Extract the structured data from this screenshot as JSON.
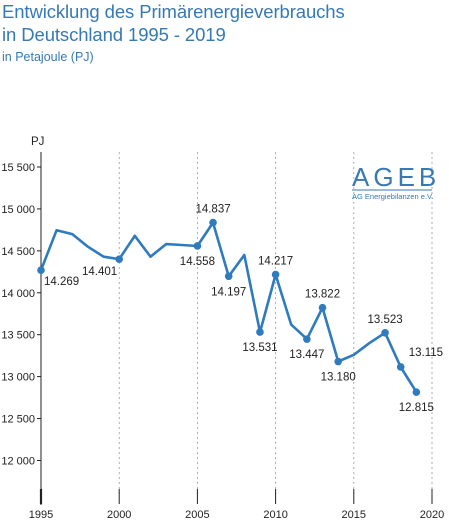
{
  "title_line1": "Entwicklung des Primärenergieverbrauchs",
  "title_line2": "in Deutschland 1995 - 2019",
  "subtitle": "in Petajoule (PJ)",
  "colors": {
    "accent": "#3679b4",
    "line": "#2e7bbf",
    "text": "#222222",
    "grid": "#999999"
  },
  "logo": {
    "text": "AGEB",
    "tagline": "AG Energiebilanzen e.V."
  },
  "chart_data": {
    "type": "line",
    "title": "Entwicklung des Primärenergieverbrauchs in Deutschland 1995 - 2019",
    "subtitle": "in Petajoule (PJ)",
    "xlabel": "",
    "ylabel": "PJ",
    "xlim": [
      1995,
      2020
    ],
    "ylim": [
      11600,
      15600
    ],
    "grid": "vertical dashed",
    "x_ticks": [
      1995,
      2000,
      2005,
      2010,
      2015,
      2020
    ],
    "x_tick_labels": [
      "1995",
      "2000",
      "2005",
      "2010",
      "2015",
      "2020"
    ],
    "y_ticks": [
      12000,
      12500,
      13000,
      13500,
      14000,
      14500,
      15000,
      15500
    ],
    "y_tick_labels": [
      "12 000",
      "12 500",
      "13 000",
      "13 500",
      "14 000",
      "14 500",
      "15 000",
      "15 500"
    ],
    "series": [
      {
        "x": [
          1995,
          1996,
          1997,
          1998,
          1999,
          2000,
          2001,
          2002,
          2003,
          2004,
          2005,
          2006,
          2007,
          2008,
          2009,
          2010,
          2011,
          2012,
          2013,
          2014,
          2015,
          2016,
          2017,
          2018,
          2019
        ],
        "values": [
          14269,
          14746,
          14700,
          14550,
          14430,
          14401,
          14680,
          14430,
          14580,
          14570,
          14558,
          14837,
          14197,
          14450,
          13531,
          14217,
          13620,
          13447,
          13822,
          13180,
          13260,
          13400,
          13523,
          13115,
          12815
        ],
        "labels": [
          {
            "x": 1995,
            "value": 14269,
            "text": "14.269",
            "pos": "below-right"
          },
          {
            "x": 2000,
            "value": 14401,
            "text": "14.401",
            "pos": "below-left"
          },
          {
            "x": 2005,
            "value": 14558,
            "text": "14.558",
            "pos": "below"
          },
          {
            "x": 2006,
            "value": 14837,
            "text": "14.837",
            "pos": "above"
          },
          {
            "x": 2007,
            "value": 14197,
            "text": "14.197",
            "pos": "below"
          },
          {
            "x": 2009,
            "value": 13531,
            "text": "13.531",
            "pos": "below"
          },
          {
            "x": 2010,
            "value": 14217,
            "text": "14.217",
            "pos": "above"
          },
          {
            "x": 2012,
            "value": 13447,
            "text": "13.447",
            "pos": "below"
          },
          {
            "x": 2013,
            "value": 13822,
            "text": "13.822",
            "pos": "above"
          },
          {
            "x": 2014,
            "value": 13180,
            "text": "13.180",
            "pos": "below"
          },
          {
            "x": 2017,
            "value": 13523,
            "text": "13.523",
            "pos": "above"
          },
          {
            "x": 2018,
            "value": 13115,
            "text": "13.115",
            "pos": "above-right"
          },
          {
            "x": 2019,
            "value": 12815,
            "text": "12.815",
            "pos": "below"
          }
        ]
      }
    ]
  }
}
